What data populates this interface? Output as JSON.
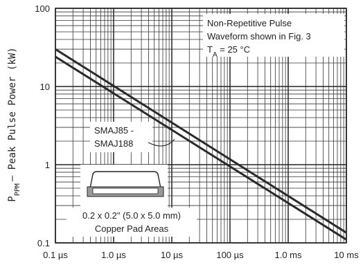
{
  "chart_data": {
    "type": "line",
    "title": "",
    "xlabel": "",
    "ylabel": "P_PPM – Peak Pulse Power (kW)",
    "ylabel_main": "P",
    "ylabel_sub": "PPM",
    "ylabel_rest": "– Peak Pulse Power (kW)",
    "x_scale": "log",
    "y_scale": "log",
    "xlim_us": [
      0.1,
      10000
    ],
    "ylim_kw": [
      0.1,
      100
    ],
    "x_tick_values_us": [
      0.1,
      1,
      10,
      100,
      1000,
      10000
    ],
    "x_tick_labels": [
      "0.1 µs",
      "1.0 µs",
      "10 µs",
      "100 µs",
      "1.0 ms",
      "10 ms"
    ],
    "y_tick_values_kw": [
      0.1,
      1,
      10,
      100
    ],
    "y_tick_labels": [
      "0.1",
      "1",
      "10",
      "100"
    ],
    "grid": true,
    "series": [
      {
        "x": [
          0.1,
          10000
        ],
        "y": [
          30,
          0.135
        ]
      },
      {
        "x": [
          0.1,
          10000
        ],
        "y": [
          24,
          0.11
        ]
      }
    ],
    "annotations": {
      "conditions": [
        "Non-Repetitive Pulse",
        "Waveform shown in Fig. 3"
      ],
      "temp_main": "T",
      "temp_sub": "A",
      "temp_rest": " = 25 °C",
      "series_label": [
        "SMAJ85 -",
        "SMAJ188"
      ],
      "pad_label": [
        "0.2 x 0.2\" (5.0 x 5.0 mm)",
        "Copper Pad Areas"
      ]
    }
  }
}
